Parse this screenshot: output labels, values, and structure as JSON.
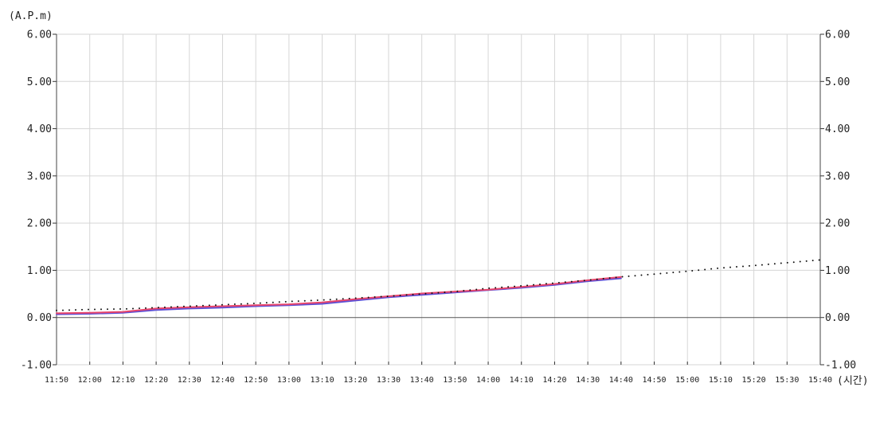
{
  "chart_data": {
    "type": "line",
    "y_unit": "(A.P.m)",
    "x_unit": "(시간)",
    "ylim": [
      -1,
      6
    ],
    "y_ticks": [
      "6.00",
      "5.00",
      "4.00",
      "3.00",
      "2.00",
      "1.00",
      "0.00",
      "-1.00"
    ],
    "x_ticks": [
      "11:50",
      "12:00",
      "12:10",
      "12:20",
      "12:30",
      "12:40",
      "12:50",
      "13:00",
      "13:10",
      "13:20",
      "13:30",
      "13:40",
      "13:50",
      "14:00",
      "14:10",
      "14:20",
      "14:30",
      "14:40",
      "14:50",
      "15:00",
      "15:10",
      "15:20",
      "15:30",
      "15:40"
    ],
    "grid": true,
    "series": [
      {
        "color": "#5b4fd6",
        "style": "solid",
        "x": [
          "11:50",
          "12:00",
          "12:10",
          "12:20",
          "12:30",
          "12:40",
          "12:50",
          "13:00",
          "13:10",
          "13:20",
          "13:30",
          "13:40",
          "13:50",
          "14:00",
          "14:10",
          "14:20",
          "14:30",
          "14:40"
        ],
        "values": [
          0.07,
          0.08,
          0.1,
          0.16,
          0.19,
          0.21,
          0.24,
          0.26,
          0.29,
          0.36,
          0.43,
          0.48,
          0.53,
          0.58,
          0.63,
          0.69,
          0.77,
          0.83
        ]
      },
      {
        "color": "#e8456b",
        "style": "solid",
        "x": [
          "11:50",
          "12:00",
          "12:10",
          "12:20",
          "12:30",
          "12:40",
          "12:50",
          "13:00",
          "13:10",
          "13:20",
          "13:30",
          "13:40",
          "13:50",
          "14:00",
          "14:10",
          "14:20",
          "14:30",
          "14:40"
        ],
        "values": [
          0.09,
          0.1,
          0.12,
          0.19,
          0.22,
          0.24,
          0.26,
          0.28,
          0.32,
          0.39,
          0.45,
          0.51,
          0.55,
          0.59,
          0.65,
          0.71,
          0.79,
          0.86
        ]
      },
      {
        "color": "#111111",
        "style": "dotted",
        "x": [
          "11:50",
          "12:00",
          "12:10",
          "12:20",
          "12:30",
          "12:40",
          "12:50",
          "13:00",
          "13:10",
          "13:20",
          "13:30",
          "13:40",
          "13:50",
          "14:00",
          "14:10",
          "14:20",
          "14:30",
          "14:40",
          "14:50",
          "15:00",
          "15:10",
          "15:20",
          "15:30",
          "15:40"
        ],
        "values": [
          0.15,
          0.17,
          0.18,
          0.21,
          0.24,
          0.27,
          0.3,
          0.34,
          0.37,
          0.41,
          0.45,
          0.5,
          0.55,
          0.62,
          0.67,
          0.73,
          0.79,
          0.86,
          0.92,
          0.98,
          1.05,
          1.1,
          1.16,
          1.22
        ]
      }
    ]
  }
}
